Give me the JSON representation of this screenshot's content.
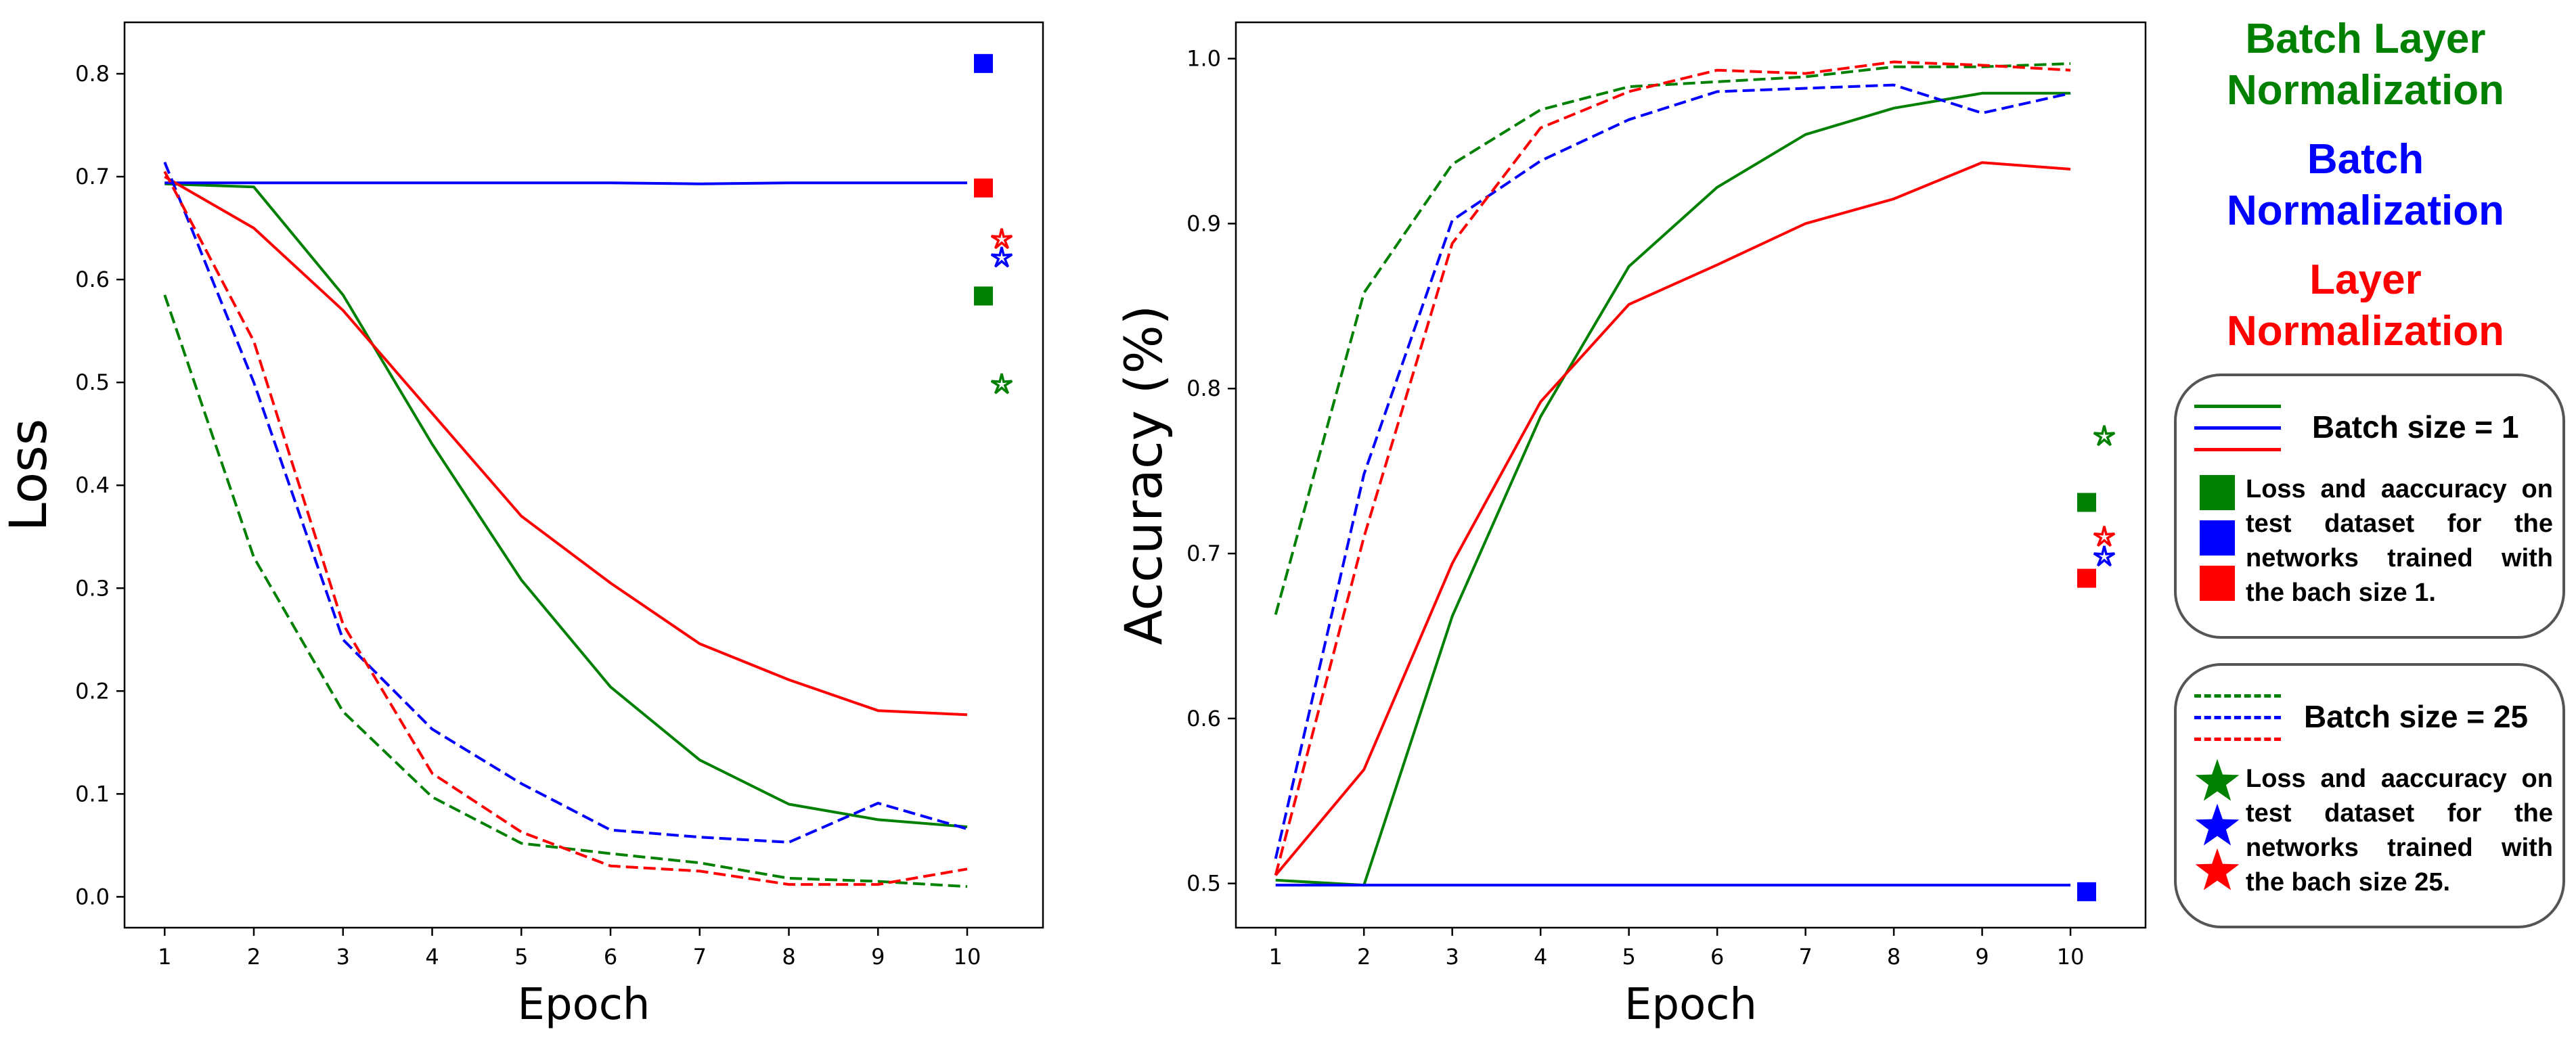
{
  "colors": {
    "batch_layer_norm": "#008000",
    "batch_norm": "#0000ff",
    "layer_norm": "#ff0000"
  },
  "legend_titles": [
    {
      "text": "Batch Layer Normalization",
      "color": "#008000"
    },
    {
      "text": "Batch Normalization",
      "color": "#0000ff"
    },
    {
      "text": "Layer Normalization",
      "color": "#ff0000"
    }
  ],
  "legend_box_1": {
    "title": "Batch size = 1",
    "description": "Loss and aaccuracy on test dataset for the networks trained with the bach size 1."
  },
  "legend_box_2": {
    "title": "Batch size = 25",
    "description": "Loss and aaccuracy on test dataset for the networks trained with the bach size 25."
  },
  "chart_data": [
    {
      "type": "line",
      "title": "",
      "xlabel": "Epoch",
      "ylabel": "Loss",
      "x": [
        1,
        2,
        3,
        4,
        5,
        6,
        7,
        8,
        9,
        10
      ],
      "xlim": [
        0.55,
        10.85
      ],
      "ylim": [
        -0.03,
        0.85
      ],
      "yticks": [
        0.0,
        0.1,
        0.2,
        0.3,
        0.4,
        0.5,
        0.6,
        0.7,
        0.8
      ],
      "ytick_labels": [
        "0.0",
        "0.1",
        "0.2",
        "0.3",
        "0.4",
        "0.5",
        "0.6",
        "0.7",
        "0.8"
      ],
      "grid": false,
      "series": [
        {
          "group": "Batch Layer Normalization",
          "batch_size": 1,
          "style": "solid",
          "color": "#008000",
          "values": [
            0.693,
            0.69,
            0.585,
            0.44,
            0.308,
            0.204,
            0.133,
            0.09,
            0.075,
            0.068
          ]
        },
        {
          "group": "Batch Normalization",
          "batch_size": 1,
          "style": "solid",
          "color": "#0000ff",
          "values": [
            0.694,
            0.694,
            0.694,
            0.694,
            0.694,
            0.694,
            0.693,
            0.694,
            0.694,
            0.694
          ]
        },
        {
          "group": "Layer Normalization",
          "batch_size": 1,
          "style": "solid",
          "color": "#ff0000",
          "values": [
            0.7,
            0.65,
            0.57,
            0.47,
            0.37,
            0.305,
            0.246,
            0.211,
            0.181,
            0.177
          ]
        },
        {
          "group": "Batch Layer Normalization",
          "batch_size": 25,
          "style": "dashed",
          "color": "#008000",
          "values": [
            0.585,
            0.33,
            0.18,
            0.097,
            0.052,
            0.042,
            0.033,
            0.018,
            0.015,
            0.01
          ]
        },
        {
          "group": "Batch Normalization",
          "batch_size": 25,
          "style": "dashed",
          "color": "#0000ff",
          "values": [
            0.714,
            0.5,
            0.25,
            0.163,
            0.11,
            0.065,
            0.058,
            0.053,
            0.091,
            0.066
          ]
        },
        {
          "group": "Layer Normalization",
          "batch_size": 25,
          "style": "dashed",
          "color": "#ff0000",
          "values": [
            0.705,
            0.54,
            0.265,
            0.12,
            0.063,
            0.03,
            0.025,
            0.012,
            0.012,
            0.027
          ]
        }
      ],
      "test_markers": [
        {
          "group": "Batch Normalization",
          "batch_size": 1,
          "marker": "square",
          "color": "#0000ff",
          "value": 0.81
        },
        {
          "group": "Layer Normalization",
          "batch_size": 1,
          "marker": "square",
          "color": "#ff0000",
          "value": 0.689
        },
        {
          "group": "Batch Layer Normalization",
          "batch_size": 1,
          "marker": "square",
          "color": "#008000",
          "value": 0.584
        },
        {
          "group": "Layer Normalization",
          "batch_size": 25,
          "marker": "star",
          "color": "#ff0000",
          "value": 0.639
        },
        {
          "group": "Batch Normalization",
          "batch_size": 25,
          "marker": "star",
          "color": "#0000ff",
          "value": 0.621
        },
        {
          "group": "Batch Layer Normalization",
          "batch_size": 25,
          "marker": "star",
          "color": "#008000",
          "value": 0.498
        }
      ]
    },
    {
      "type": "line",
      "title": "",
      "xlabel": "Epoch",
      "ylabel": "Accuracy (%)",
      "x": [
        1,
        2,
        3,
        4,
        5,
        6,
        7,
        8,
        9,
        10
      ],
      "xlim": [
        0.55,
        10.85
      ],
      "ylim": [
        0.4732,
        1.022
      ],
      "yticks": [
        0.5,
        0.6,
        0.7,
        0.8,
        0.9,
        1.0
      ],
      "ytick_labels": [
        "0.5",
        "0.6",
        "0.7",
        "0.8",
        "0.9",
        "1.0"
      ],
      "grid": false,
      "series": [
        {
          "group": "Batch Layer Normalization",
          "batch_size": 1,
          "style": "solid",
          "color": "#008000",
          "values": [
            0.502,
            0.499,
            0.662,
            0.783,
            0.874,
            0.922,
            0.954,
            0.97,
            0.979,
            0.979
          ]
        },
        {
          "group": "Batch Normalization",
          "batch_size": 1,
          "style": "solid",
          "color": "#0000ff",
          "values": [
            0.499,
            0.499,
            0.499,
            0.499,
            0.499,
            0.499,
            0.499,
            0.499,
            0.499,
            0.499
          ]
        },
        {
          "group": "Layer Normalization",
          "batch_size": 1,
          "style": "solid",
          "color": "#ff0000",
          "values": [
            0.505,
            0.569,
            0.694,
            0.792,
            0.851,
            0.875,
            0.9,
            0.915,
            0.937,
            0.933
          ]
        },
        {
          "group": "Batch Layer Normalization",
          "batch_size": 25,
          "style": "dashed",
          "color": "#008000",
          "values": [
            0.663,
            0.858,
            0.936,
            0.969,
            0.983,
            0.986,
            0.989,
            0.995,
            0.995,
            0.997
          ]
        },
        {
          "group": "Batch Normalization",
          "batch_size": 25,
          "style": "dashed",
          "color": "#0000ff",
          "values": [
            0.515,
            0.748,
            0.902,
            0.938,
            0.963,
            0.98,
            0.982,
            0.984,
            0.967,
            0.979
          ]
        },
        {
          "group": "Layer Normalization",
          "batch_size": 25,
          "style": "dashed",
          "color": "#ff0000",
          "values": [
            0.505,
            0.71,
            0.888,
            0.958,
            0.98,
            0.993,
            0.991,
            0.998,
            0.996,
            0.993
          ]
        }
      ],
      "test_markers": [
        {
          "group": "Batch Layer Normalization",
          "batch_size": 25,
          "marker": "star",
          "color": "#008000",
          "value": 0.771
        },
        {
          "group": "Batch Layer Normalization",
          "batch_size": 1,
          "marker": "square",
          "color": "#008000",
          "value": 0.731
        },
        {
          "group": "Layer Normalization",
          "batch_size": 25,
          "marker": "star",
          "color": "#ff0000",
          "value": 0.71
        },
        {
          "group": "Batch Normalization",
          "batch_size": 25,
          "marker": "star",
          "color": "#0000ff",
          "value": 0.698
        },
        {
          "group": "Layer Normalization",
          "batch_size": 1,
          "marker": "square",
          "color": "#ff0000",
          "value": 0.685
        },
        {
          "group": "Batch Normalization",
          "batch_size": 1,
          "marker": "square",
          "color": "#0000ff",
          "value": 0.495
        }
      ]
    }
  ]
}
